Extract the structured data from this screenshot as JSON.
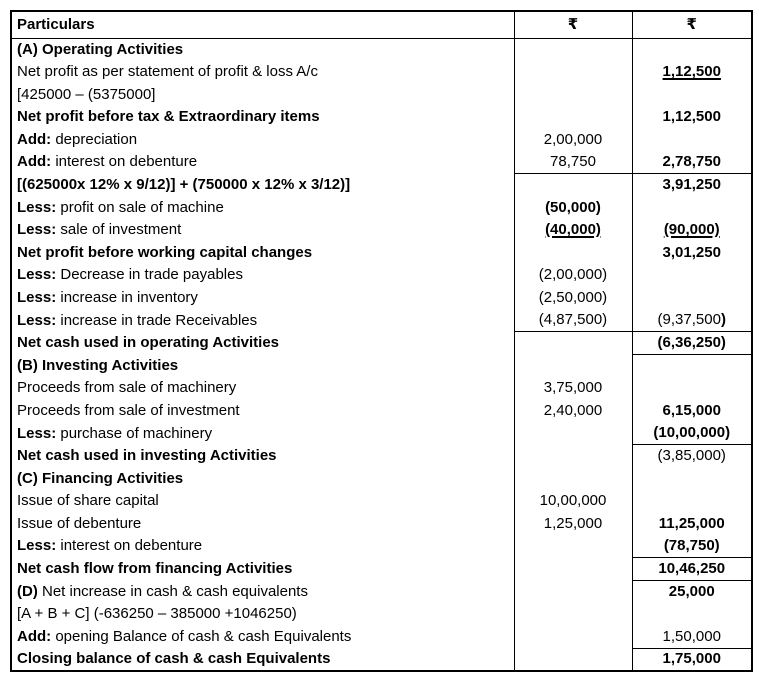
{
  "table": {
    "header": {
      "particulars": "Particulars",
      "amount1": "₹",
      "amount2": "₹"
    },
    "rows": [
      {
        "label": "(A) Operating Activities",
        "col1": "",
        "col2": ""
      },
      {
        "label": "Net profit as per statement of profit & loss A/c",
        "col1": "",
        "col2": "1,12,500"
      },
      {
        "label": "[425000 – (5375000]",
        "col1": "",
        "col2": ""
      },
      {
        "label": "Net profit before tax & Extraordinary items",
        "col1": "",
        "col2": "1,12,500"
      },
      {
        "prefix": "Add:",
        "rest": " depreciation",
        "col1": "2,00,000",
        "col2": ""
      },
      {
        "prefix": "Add:",
        "rest": " interest on debenture",
        "col1": "78,750",
        "col2": "2,78,750"
      },
      {
        "label": "[(625000x 12% x 9/12)] + (750000 x 12% x 3/12)]",
        "col1": "",
        "col2": "3,91,250"
      },
      {
        "prefix": "Less:",
        "rest": " profit on sale of machine",
        "col1": "(50,000)",
        "col2": ""
      },
      {
        "prefix": "Less:",
        "rest": " sale of investment",
        "col1": "(40,000)",
        "col2": "(90,000)"
      },
      {
        "label": "Net profit before working capital changes",
        "col1": "",
        "col2": "3,01,250"
      },
      {
        "prefix": "Less:",
        "rest": " Decrease in trade payables",
        "col1": "(2,00,000)",
        "col2": ""
      },
      {
        "prefix": "Less:",
        "rest": " increase in inventory",
        "col1": "(2,50,000)",
        "col2": ""
      },
      {
        "prefix": "Less:",
        "rest": " increase in trade Receivables",
        "col1": "(4,87,500)",
        "col2": "(9,37,500",
        "col2_suffix": ")"
      },
      {
        "label": "Net cash used in operating Activities",
        "col1": "",
        "col2": "(6,36,250)"
      },
      {
        "label": "(B) Investing Activities",
        "col1": "",
        "col2": ""
      },
      {
        "label": "Proceeds from sale of machinery",
        "col1": "3,75,000",
        "col2": ""
      },
      {
        "label": "Proceeds from sale of investment",
        "col1": "2,40,000",
        "col2": "6,15,000"
      },
      {
        "prefix": "Less:",
        "rest": " purchase of machinery",
        "col1": "",
        "col2": "(10,00,000)"
      },
      {
        "label": "Net cash used in investing Activities",
        "col1": "",
        "col2": "(3,85,000)"
      },
      {
        "label": "(C) Financing Activities",
        "col1": "",
        "col2": ""
      },
      {
        "label": "Issue of share capital",
        "col1": "10,00,000",
        "col2": ""
      },
      {
        "label": "Issue of debenture",
        "col1": "1,25,000",
        "col2": "11,25,000"
      },
      {
        "prefix": "Less:",
        "rest": " interest on debenture",
        "col1": "",
        "col2": "(78,750)"
      },
      {
        "label": "Net cash flow from financing Activities",
        "col1": "",
        "col2": "10,46,250"
      },
      {
        "prefix": "(D)",
        "rest": " Net increase in cash & cash equivalents",
        "col1": "",
        "col2": "25,000"
      },
      {
        "label": "[A + B + C] (-636250 – 385000 +1046250)",
        "col1": "",
        "col2": ""
      },
      {
        "prefix": "Add:",
        "rest": " opening Balance of cash & cash Equivalents",
        "col1": "",
        "col2": "1,50,000"
      },
      {
        "label": "Closing balance of cash & cash Equivalents",
        "col1": "",
        "col2": "1,75,000"
      }
    ]
  }
}
